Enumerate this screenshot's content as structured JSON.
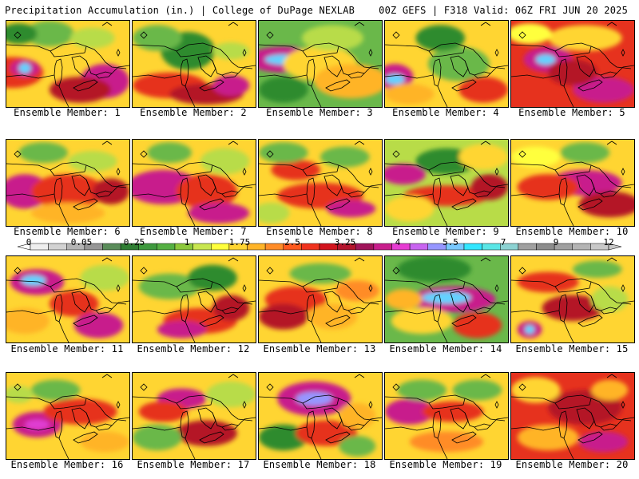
{
  "header": {
    "title_left": "Precipitation Accumulation (in.) | College of DuPage NEXLAB",
    "title_right": "00Z GEFS | F318 Valid: 06Z FRI JUN 20 2025"
  },
  "colorbar": {
    "labels": [
      "0",
      "0.05",
      "0.25",
      "1",
      "1.75",
      "2.5",
      "3.25",
      "4",
      "5.5",
      "7",
      "9",
      "12"
    ],
    "colors": [
      "#eeeeee",
      "#d2d2d2",
      "#b4b4b4",
      "#969696",
      "#5a8c5a",
      "#2e7d32",
      "#3f9a3f",
      "#55b043",
      "#8cc83c",
      "#c8e650",
      "#ffff3c",
      "#ffd532",
      "#ffb428",
      "#ff8c28",
      "#ff5a1e",
      "#f0321e",
      "#d2141e",
      "#b4142d",
      "#a0145a",
      "#c81e8c",
      "#e63cd2",
      "#c864f0",
      "#9696ff",
      "#78c8ff",
      "#32e6ff",
      "#5ae6e6",
      "#8cd2d2",
      "#a0a0a0",
      "#8c8c8c",
      "#a0a0a0",
      "#b4b4b4",
      "#c8c8c8"
    ]
  },
  "map_colors": {
    "green_dark": "#2e8b2e",
    "green_light": "#6ab84a",
    "yellow_green": "#b8dc48",
    "yellow": "#ffff3c",
    "orange": "#ffb428",
    "red": "#e6321e",
    "dark_red": "#b41428",
    "magenta": "#c81e8c",
    "violet": "#e03cd2",
    "cyan": "#64d2ff",
    "map_lines": "#000000"
  },
  "panels": [
    {
      "caption": "Ensemble Member: 1",
      "base": "#ffd532",
      "blobs": [
        [
          0.05,
          0.6,
          0.25,
          0.18,
          "#e6321e"
        ],
        [
          0.15,
          0.55,
          0.12,
          0.1,
          "#c81e8c"
        ],
        [
          0.15,
          0.55,
          0.05,
          0.06,
          "#64d2ff"
        ],
        [
          0.8,
          0.7,
          0.2,
          0.2,
          "#c81e8c"
        ],
        [
          0.6,
          0.8,
          0.25,
          0.15,
          "#b41428"
        ],
        [
          0.35,
          0.15,
          0.2,
          0.15,
          "#6ab84a"
        ],
        [
          0.7,
          0.2,
          0.18,
          0.12,
          "#b8dc48"
        ],
        [
          0.1,
          0.15,
          0.15,
          0.12,
          "#2e8b2e"
        ]
      ]
    },
    {
      "caption": "Ensemble Member: 2",
      "base": "#ffd532",
      "blobs": [
        [
          0.45,
          0.35,
          0.22,
          0.22,
          "#2e8b2e"
        ],
        [
          0.2,
          0.2,
          0.2,
          0.15,
          "#6ab84a"
        ],
        [
          0.3,
          0.75,
          0.3,
          0.15,
          "#e6321e"
        ],
        [
          0.6,
          0.85,
          0.3,
          0.12,
          "#b41428"
        ],
        [
          0.8,
          0.75,
          0.15,
          0.12,
          "#c81e8c"
        ],
        [
          0.8,
          0.35,
          0.15,
          0.1,
          "#b8dc48"
        ]
      ]
    },
    {
      "caption": "Ensemble Member: 3",
      "base": "#6ab84a",
      "blobs": [
        [
          0.2,
          0.45,
          0.3,
          0.15,
          "#c81e8c"
        ],
        [
          0.2,
          0.45,
          0.15,
          0.06,
          "#64d2ff"
        ],
        [
          0.5,
          0.5,
          0.3,
          0.2,
          "#ffd532"
        ],
        [
          0.2,
          0.8,
          0.2,
          0.15,
          "#2e8b2e"
        ],
        [
          0.75,
          0.7,
          0.3,
          0.2,
          "#ffb428"
        ],
        [
          0.6,
          0.2,
          0.25,
          0.15,
          "#b8dc48"
        ]
      ]
    },
    {
      "caption": "Ensemble Member: 4",
      "base": "#ffd532",
      "blobs": [
        [
          0.08,
          0.65,
          0.15,
          0.15,
          "#c81e8c"
        ],
        [
          0.08,
          0.68,
          0.08,
          0.06,
          "#64d2ff"
        ],
        [
          0.6,
          0.5,
          0.25,
          0.2,
          "#6ab84a"
        ],
        [
          0.45,
          0.2,
          0.2,
          0.15,
          "#2e8b2e"
        ],
        [
          0.8,
          0.8,
          0.2,
          0.15,
          "#e6321e"
        ],
        [
          0.2,
          0.85,
          0.2,
          0.12,
          "#ffb428"
        ]
      ]
    },
    {
      "caption": "Ensemble Member: 5",
      "base": "#e6321e",
      "blobs": [
        [
          0.3,
          0.45,
          0.2,
          0.15,
          "#c81e8c"
        ],
        [
          0.28,
          0.45,
          0.08,
          0.06,
          "#64d2ff"
        ],
        [
          0.6,
          0.2,
          0.3,
          0.15,
          "#ffd532"
        ],
        [
          0.15,
          0.15,
          0.18,
          0.12,
          "#ffff3c"
        ],
        [
          0.75,
          0.8,
          0.25,
          0.15,
          "#c81e8c"
        ],
        [
          0.5,
          0.6,
          0.2,
          0.15,
          "#b41428"
        ]
      ]
    },
    {
      "caption": "Ensemble Member: 6",
      "base": "#ffd532",
      "blobs": [
        [
          0.15,
          0.6,
          0.2,
          0.2,
          "#c81e8c"
        ],
        [
          0.5,
          0.6,
          0.3,
          0.2,
          "#e6321e"
        ],
        [
          0.85,
          0.6,
          0.15,
          0.15,
          "#b41428"
        ],
        [
          0.3,
          0.15,
          0.2,
          0.12,
          "#6ab84a"
        ],
        [
          0.7,
          0.25,
          0.2,
          0.12,
          "#b8dc48"
        ],
        [
          0.5,
          0.85,
          0.3,
          0.12,
          "#ffb428"
        ]
      ]
    },
    {
      "caption": "Ensemble Member: 7",
      "base": "#ffd532",
      "blobs": [
        [
          0.25,
          0.55,
          0.3,
          0.2,
          "#c81e8c"
        ],
        [
          0.6,
          0.6,
          0.25,
          0.2,
          "#e6321e"
        ],
        [
          0.7,
          0.85,
          0.25,
          0.12,
          "#c81e8c"
        ],
        [
          0.3,
          0.15,
          0.18,
          0.12,
          "#6ab84a"
        ],
        [
          0.75,
          0.25,
          0.2,
          0.15,
          "#b8dc48"
        ]
      ]
    },
    {
      "caption": "Ensemble Member: 8",
      "base": "#ffd532",
      "blobs": [
        [
          0.3,
          0.35,
          0.2,
          0.12,
          "#e6321e"
        ],
        [
          0.5,
          0.65,
          0.35,
          0.15,
          "#e6321e"
        ],
        [
          0.75,
          0.8,
          0.2,
          0.1,
          "#c81e8c"
        ],
        [
          0.2,
          0.15,
          0.2,
          0.12,
          "#6ab84a"
        ],
        [
          0.7,
          0.2,
          0.2,
          0.12,
          "#6ab84a"
        ],
        [
          0.1,
          0.85,
          0.15,
          0.12,
          "#b8dc48"
        ]
      ]
    },
    {
      "caption": "Ensemble Member: 9",
      "base": "#b8dc48",
      "blobs": [
        [
          0.15,
          0.4,
          0.18,
          0.12,
          "#c81e8c"
        ],
        [
          0.5,
          0.65,
          0.35,
          0.12,
          "#e6321e"
        ],
        [
          0.85,
          0.55,
          0.15,
          0.15,
          "#b41428"
        ],
        [
          0.5,
          0.25,
          0.25,
          0.15,
          "#2e8b2e"
        ],
        [
          0.2,
          0.8,
          0.2,
          0.15,
          "#ffd532"
        ],
        [
          0.8,
          0.2,
          0.2,
          0.15,
          "#ffd532"
        ]
      ]
    },
    {
      "caption": "Ensemble Member: 10",
      "base": "#ffd532",
      "blobs": [
        [
          0.6,
          0.5,
          0.3,
          0.15,
          "#c81e8c"
        ],
        [
          0.3,
          0.55,
          0.25,
          0.15,
          "#e6321e"
        ],
        [
          0.8,
          0.75,
          0.25,
          0.15,
          "#b41428"
        ],
        [
          0.2,
          0.2,
          0.2,
          0.12,
          "#ffff3c"
        ],
        [
          0.6,
          0.15,
          0.2,
          0.12,
          "#6ab84a"
        ]
      ]
    },
    {
      "caption": "Ensemble Member: 11",
      "base": "#ffd532",
      "blobs": [
        [
          0.25,
          0.3,
          0.22,
          0.15,
          "#c81e8c"
        ],
        [
          0.22,
          0.28,
          0.1,
          0.06,
          "#64d2ff"
        ],
        [
          0.55,
          0.55,
          0.2,
          0.15,
          "#e6321e"
        ],
        [
          0.75,
          0.8,
          0.2,
          0.15,
          "#c81e8c"
        ],
        [
          0.8,
          0.25,
          0.2,
          0.15,
          "#b8dc48"
        ],
        [
          0.15,
          0.75,
          0.2,
          0.15,
          "#ffb428"
        ]
      ]
    },
    {
      "caption": "Ensemble Member: 12",
      "base": "#ffd532",
      "blobs": [
        [
          0.3,
          0.35,
          0.25,
          0.15,
          "#6ab84a"
        ],
        [
          0.65,
          0.25,
          0.2,
          0.15,
          "#2e8b2e"
        ],
        [
          0.55,
          0.75,
          0.3,
          0.15,
          "#e6321e"
        ],
        [
          0.4,
          0.85,
          0.2,
          0.1,
          "#c81e8c"
        ],
        [
          0.8,
          0.6,
          0.15,
          0.15,
          "#b41428"
        ]
      ]
    },
    {
      "caption": "Ensemble Member: 13",
      "base": "#ffd532",
      "blobs": [
        [
          0.3,
          0.5,
          0.25,
          0.15,
          "#e6321e"
        ],
        [
          0.2,
          0.7,
          0.2,
          0.15,
          "#b41428"
        ],
        [
          0.6,
          0.7,
          0.2,
          0.15,
          "#ffb428"
        ],
        [
          0.5,
          0.2,
          0.25,
          0.12,
          "#6ab84a"
        ],
        [
          0.8,
          0.4,
          0.18,
          0.12,
          "#ff8c28"
        ]
      ]
    },
    {
      "caption": "Ensemble Member: 14",
      "base": "#6ab84a",
      "blobs": [
        [
          0.55,
          0.5,
          0.35,
          0.15,
          "#c81e8c"
        ],
        [
          0.5,
          0.48,
          0.2,
          0.07,
          "#64d2ff"
        ],
        [
          0.4,
          0.15,
          0.3,
          0.15,
          "#2e8b2e"
        ],
        [
          0.3,
          0.75,
          0.25,
          0.15,
          "#ffd532"
        ],
        [
          0.75,
          0.8,
          0.2,
          0.15,
          "#e6321e"
        ],
        [
          0.15,
          0.5,
          0.15,
          0.12,
          "#ffb428"
        ]
      ]
    },
    {
      "caption": "Ensemble Member: 15",
      "base": "#ffd532",
      "blobs": [
        [
          0.3,
          0.3,
          0.25,
          0.12,
          "#e6321e"
        ],
        [
          0.5,
          0.6,
          0.25,
          0.15,
          "#b41428"
        ],
        [
          0.15,
          0.85,
          0.1,
          0.1,
          "#c81e8c"
        ],
        [
          0.15,
          0.85,
          0.04,
          0.05,
          "#64d2ff"
        ],
        [
          0.8,
          0.5,
          0.15,
          0.15,
          "#b8dc48"
        ],
        [
          0.7,
          0.15,
          0.2,
          0.1,
          "#6ab84a"
        ]
      ]
    },
    {
      "caption": "Ensemble Member: 16",
      "base": "#ffd532",
      "blobs": [
        [
          0.25,
          0.6,
          0.2,
          0.15,
          "#c81e8c"
        ],
        [
          0.25,
          0.6,
          0.1,
          0.06,
          "#e03cd2"
        ],
        [
          0.6,
          0.45,
          0.3,
          0.15,
          "#e6321e"
        ],
        [
          0.4,
          0.2,
          0.2,
          0.12,
          "#6ab84a"
        ],
        [
          0.8,
          0.8,
          0.2,
          0.12,
          "#ffb428"
        ],
        [
          0.1,
          0.25,
          0.12,
          0.1,
          "#b8dc48"
        ]
      ]
    },
    {
      "caption": "Ensemble Member: 17",
      "base": "#ffd532",
      "blobs": [
        [
          0.4,
          0.3,
          0.2,
          0.12,
          "#c81e8c"
        ],
        [
          0.25,
          0.45,
          0.2,
          0.12,
          "#e6321e"
        ],
        [
          0.6,
          0.7,
          0.25,
          0.15,
          "#b41428"
        ],
        [
          0.2,
          0.75,
          0.2,
          0.15,
          "#6ab84a"
        ],
        [
          0.8,
          0.25,
          0.2,
          0.15,
          "#b8dc48"
        ]
      ]
    },
    {
      "caption": "Ensemble Member: 18",
      "base": "#ffd532",
      "blobs": [
        [
          0.45,
          0.3,
          0.3,
          0.2,
          "#c81e8c"
        ],
        [
          0.45,
          0.3,
          0.15,
          0.08,
          "#9696ff"
        ],
        [
          0.2,
          0.75,
          0.2,
          0.15,
          "#2e8b2e"
        ],
        [
          0.55,
          0.7,
          0.25,
          0.15,
          "#e6321e"
        ],
        [
          0.8,
          0.5,
          0.15,
          0.15,
          "#ffb428"
        ],
        [
          0.8,
          0.85,
          0.15,
          0.12,
          "#6ab84a"
        ]
      ]
    },
    {
      "caption": "Ensemble Member: 19",
      "base": "#ffd532",
      "blobs": [
        [
          0.2,
          0.45,
          0.2,
          0.15,
          "#c81e8c"
        ],
        [
          0.55,
          0.45,
          0.25,
          0.12,
          "#e6321e"
        ],
        [
          0.3,
          0.2,
          0.2,
          0.12,
          "#6ab84a"
        ],
        [
          0.75,
          0.2,
          0.2,
          0.12,
          "#6ab84a"
        ],
        [
          0.5,
          0.8,
          0.3,
          0.12,
          "#ff8c28"
        ]
      ]
    },
    {
      "caption": "Ensemble Member: 20",
      "base": "#e6321e",
      "blobs": [
        [
          0.6,
          0.4,
          0.3,
          0.2,
          "#b41428"
        ],
        [
          0.2,
          0.2,
          0.2,
          0.15,
          "#ffd532"
        ],
        [
          0.8,
          0.2,
          0.15,
          0.12,
          "#ffb428"
        ],
        [
          0.3,
          0.75,
          0.25,
          0.15,
          "#ffb428"
        ],
        [
          0.75,
          0.8,
          0.2,
          0.12,
          "#c81e8c"
        ]
      ]
    }
  ]
}
